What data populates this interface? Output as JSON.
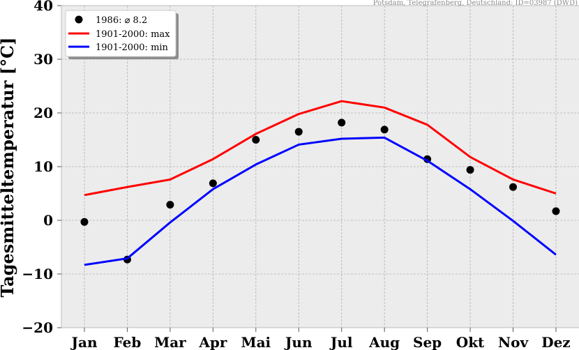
{
  "source_note": "Potsdam, Telegrafenberg, Deutschland: ID=03987 (DWD)",
  "chart_data": {
    "type": "line",
    "categories": [
      "Jan",
      "Feb",
      "Mar",
      "Apr",
      "Mai",
      "Jun",
      "Jul",
      "Aug",
      "Sep",
      "Okt",
      "Nov",
      "Dez"
    ],
    "ylabel": "Tagesmitteltemperatur [°C]",
    "xlabel": "",
    "ylim": [
      -20,
      40
    ],
    "yticks": [
      -20,
      -10,
      0,
      10,
      20,
      30,
      40
    ],
    "grid": true,
    "legend_position": "top-left",
    "series": [
      {
        "name": "1986: ⌀ 8.2",
        "kind": "scatter",
        "color": "#000000",
        "values": [
          -0.3,
          -7.3,
          2.9,
          6.9,
          15.0,
          16.5,
          18.2,
          16.9,
          11.4,
          9.4,
          6.2,
          1.7
        ]
      },
      {
        "name": "1901-2000: max",
        "kind": "line",
        "color": "#ff0000",
        "values": [
          4.7,
          6.2,
          7.6,
          11.4,
          16.1,
          19.8,
          22.2,
          21.0,
          17.8,
          11.8,
          7.6,
          5.0
        ]
      },
      {
        "name": "1901-2000: min",
        "kind": "line",
        "color": "#0000ff",
        "values": [
          -8.3,
          -7.1,
          -0.4,
          5.8,
          10.4,
          14.1,
          15.2,
          15.4,
          11.1,
          5.8,
          -0.1,
          -6.4
        ]
      }
    ]
  }
}
